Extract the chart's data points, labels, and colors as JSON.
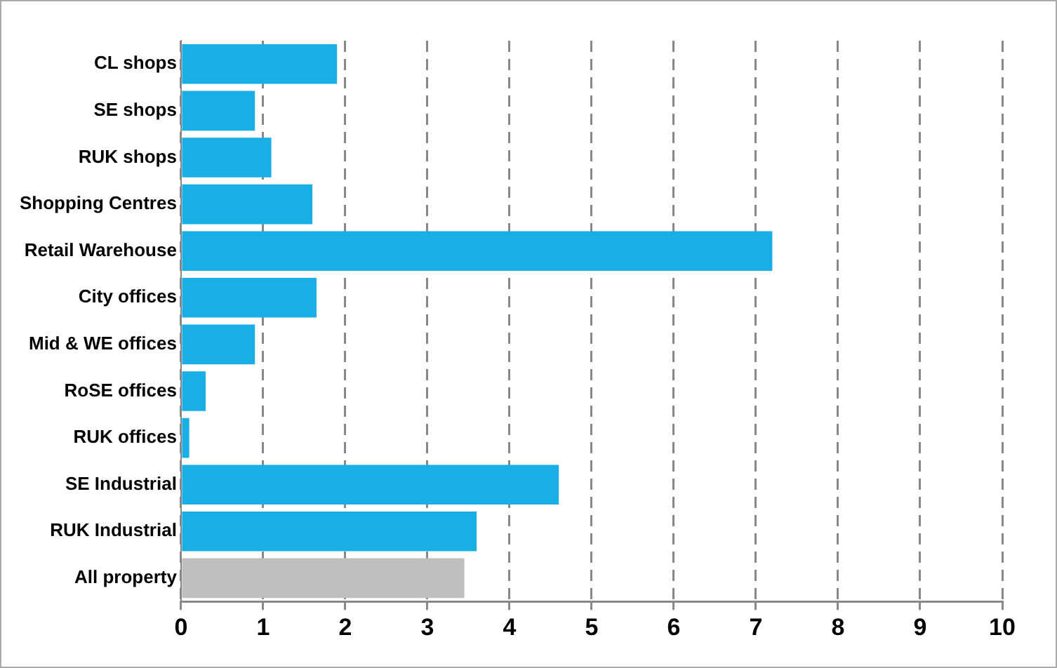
{
  "chart_data": {
    "type": "bar",
    "orientation": "horizontal",
    "categories": [
      "CL shops",
      "SE shops",
      "RUK shops",
      "Shopping Centres",
      "Retail Warehouse",
      "City offices",
      "Mid & WE offices",
      "RoSE offices",
      "RUK offices",
      "SE Industrial",
      "RUK Industrial",
      "All property"
    ],
    "values": [
      1.9,
      0.9,
      1.1,
      1.6,
      7.2,
      1.65,
      0.9,
      0.3,
      0.1,
      4.6,
      3.6,
      3.45
    ],
    "colors": [
      "#1aaee6",
      "#1aaee6",
      "#1aaee6",
      "#1aaee6",
      "#1aaee6",
      "#1aaee6",
      "#1aaee6",
      "#1aaee6",
      "#1aaee6",
      "#1aaee6",
      "#1aaee6",
      "#bfbfbf"
    ],
    "xlim": [
      0,
      10
    ],
    "xticks": [
      0,
      1,
      2,
      3,
      4,
      5,
      6,
      7,
      8,
      9,
      10
    ],
    "grid": "x",
    "legend": false
  }
}
